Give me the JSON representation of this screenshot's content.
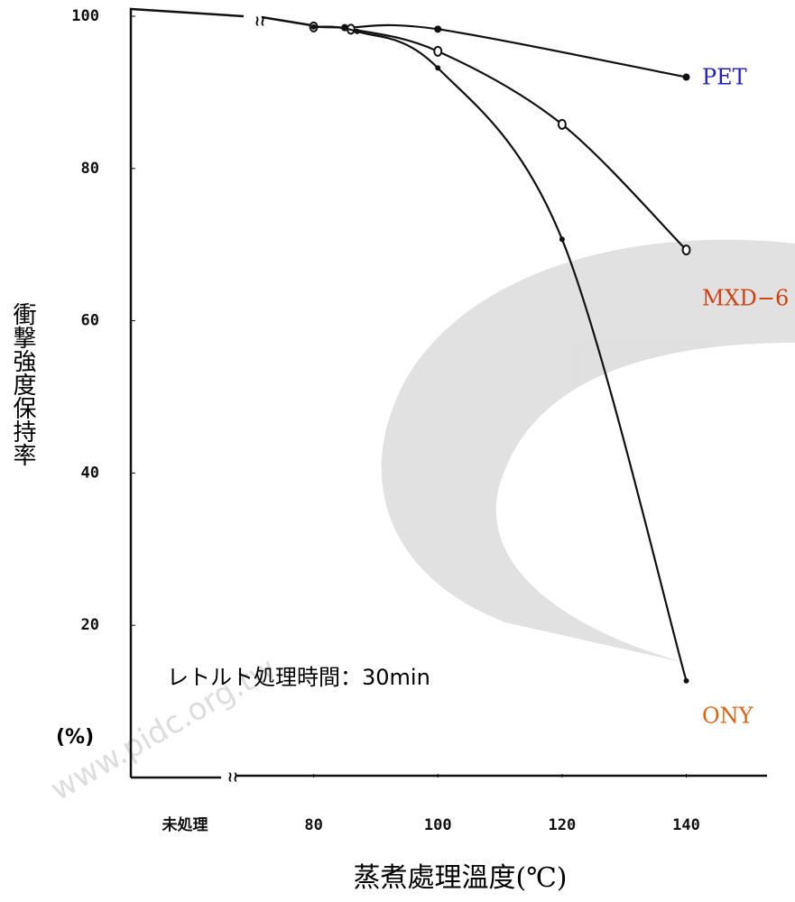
{
  "chart_data": {
    "type": "line",
    "y_label": "衝撃強度保持率",
    "y_unit_label": "(%)",
    "x_label": "蒸煮處理溫度(℃)",
    "untreated_label": "未処理",
    "annotation": "レトルト処理時間：30min",
    "watermark": "www.pidc.org.tw",
    "xlim": [
      68,
      153
    ],
    "xticks": [
      80,
      100,
      120,
      140
    ],
    "ylim": [
      0,
      100
    ],
    "yticks": [
      20,
      40,
      60,
      80,
      100
    ],
    "series": [
      {
        "name": "PET",
        "color": "#2020c0",
        "untreated_value": 100,
        "x": [
          80,
          85,
          100,
          140
        ],
        "values": [
          98.6,
          98.5,
          98.3,
          92
        ]
      },
      {
        "name": "MXD−6",
        "color": "#d04010",
        "untreated_value": 100,
        "x": [
          80,
          86,
          100,
          120,
          140
        ],
        "values": [
          98.6,
          98.3,
          95.4,
          85.8,
          69.3
        ]
      },
      {
        "name": "ONY",
        "color": "#e06010",
        "untreated_value": 100,
        "x": [
          80,
          87,
          100,
          120,
          140
        ],
        "values": [
          98.6,
          98,
          93.2,
          70.7,
          12.7
        ]
      }
    ]
  }
}
